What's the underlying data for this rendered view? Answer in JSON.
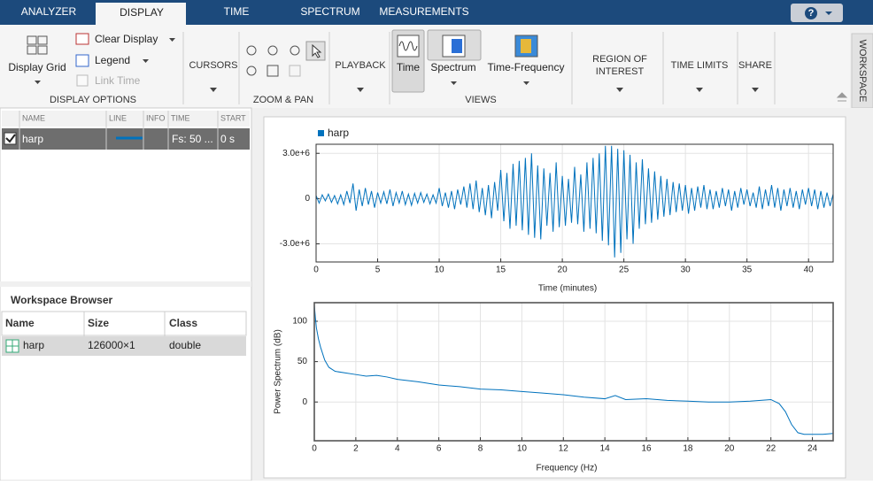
{
  "ui": {
    "tabs": [
      "ANALYZER",
      "DISPLAY",
      "TIME",
      "SPECTRUM",
      "MEASUREMENTS"
    ],
    "help": "?",
    "toolstrip": {
      "display_grid": "Display Grid",
      "clear_display": "Clear Display",
      "legend": "Legend",
      "link_time": "Link Time",
      "display_options": "DISPLAY OPTIONS",
      "cursors": "CURSORS",
      "zoom_pan": "ZOOM & PAN",
      "playback": "PLAYBACK",
      "time": "Time",
      "spectrum": "Spectrum",
      "time_frequency": "Time-Frequency",
      "views": "VIEWS",
      "region_of_interest": [
        "REGION OF",
        "INTEREST"
      ],
      "time_limits": "TIME LIMITS",
      "share": "SHARE"
    },
    "workspace_tab": "WORKSPACE",
    "signal_table": {
      "columns": [
        "NAME",
        "LINE",
        "INFO",
        "TIME",
        "START"
      ],
      "rows": [
        {
          "name": "harp",
          "time": "Fs: 50 ...",
          "start": "0 s"
        }
      ]
    },
    "workspace_browser": {
      "title": "Workspace Browser",
      "columns": [
        "Name",
        "Size",
        "Class"
      ],
      "rows": [
        [
          "harp",
          "126000×1",
          "double"
        ]
      ]
    }
  },
  "chart_data": [
    {
      "type": "line",
      "x_label": "Time (minutes)",
      "legend": "top-left",
      "grid": true,
      "x": [
        0,
        0.25,
        0.5,
        0.75,
        1,
        1.25,
        1.5,
        1.75,
        2,
        2.25,
        2.5,
        2.75,
        3,
        3.25,
        3.5,
        3.75,
        4,
        4.25,
        4.5,
        4.75,
        5,
        5.25,
        5.5,
        5.75,
        6,
        6.25,
        6.5,
        6.75,
        7,
        7.25,
        7.5,
        7.75,
        8,
        8.25,
        8.5,
        8.75,
        9,
        9.25,
        9.5,
        9.75,
        10,
        10.25,
        10.5,
        10.75,
        11,
        11.25,
        11.5,
        11.75,
        12,
        12.25,
        12.5,
        12.75,
        13,
        13.25,
        13.5,
        13.75,
        14,
        14.25,
        14.5,
        14.75,
        15,
        15.25,
        15.5,
        15.75,
        16,
        16.25,
        16.5,
        16.75,
        17,
        17.25,
        17.5,
        17.75,
        18,
        18.25,
        18.5,
        18.75,
        19,
        19.25,
        19.5,
        19.75,
        20,
        20.25,
        20.5,
        20.75,
        21,
        21.25,
        21.5,
        21.75,
        22,
        22.25,
        22.5,
        22.75,
        23,
        23.25,
        23.5,
        23.75,
        24,
        24.25,
        24.5,
        24.75,
        25,
        25.25,
        25.5,
        25.75,
        26,
        26.25,
        26.5,
        26.75,
        27,
        27.25,
        27.5,
        27.75,
        28,
        28.25,
        28.5,
        28.75,
        29,
        29.25,
        29.5,
        29.75,
        30,
        30.25,
        30.5,
        30.75,
        31,
        31.25,
        31.5,
        31.75,
        32,
        32.25,
        32.5,
        32.75,
        33,
        33.25,
        33.5,
        33.75,
        34,
        34.25,
        34.5,
        34.75,
        35,
        35.25,
        35.5,
        35.75,
        36,
        36.25,
        36.5,
        36.75,
        37,
        37.25,
        37.5,
        37.75,
        38,
        38.25,
        38.5,
        38.75,
        39,
        39.25,
        39.5,
        39.75,
        40,
        40.25,
        40.5,
        40.75,
        41,
        41.25,
        41.5,
        41.75,
        42
      ],
      "series": [
        {
          "name": "harp",
          "color": "#0072bd",
          "values": [
            200000,
            -300000,
            250000,
            -150000,
            300000,
            -250000,
            200000,
            -350000,
            250000,
            -400000,
            500000,
            -300000,
            1000000,
            -800000,
            600000,
            -500000,
            700000,
            -400000,
            500000,
            -600000,
            400000,
            -300000,
            450000,
            -350000,
            600000,
            -500000,
            400000,
            -300000,
            500000,
            -400000,
            300000,
            -450000,
            350000,
            -300000,
            400000,
            -250000,
            300000,
            -350000,
            250000,
            -300000,
            700000,
            -500000,
            400000,
            -600000,
            500000,
            -700000,
            600000,
            -400000,
            800000,
            -600000,
            1000000,
            -700000,
            1200000,
            -900000,
            700000,
            -1100000,
            900000,
            -1300000,
            1100000,
            -800000,
            1900000,
            -1500000,
            1700000,
            -2000000,
            2300000,
            -1800000,
            2500000,
            -2100000,
            2700000,
            -2400000,
            3000000,
            -2600000,
            2200000,
            -2700000,
            2000000,
            -1800000,
            1700000,
            -2200000,
            2400000,
            -1900000,
            1500000,
            -1800000,
            1300000,
            -1600000,
            2100000,
            -1700000,
            1600000,
            -2200000,
            2400000,
            -2000000,
            2700000,
            -2300000,
            3000000,
            -2800000,
            3500000,
            -3100000,
            3500000,
            -3900000,
            3300000,
            -3600000,
            3200000,
            -2700000,
            2900000,
            -3000000,
            2400000,
            -2000000,
            2600000,
            -1700000,
            2000000,
            -1600000,
            1800000,
            -1400000,
            1500000,
            -1200000,
            1300000,
            -1100000,
            1100000,
            -900000,
            1000000,
            -800000,
            900000,
            -1000000,
            700000,
            -800000,
            800000,
            -600000,
            900000,
            -700000,
            600000,
            -700000,
            500000,
            -600000,
            700000,
            -500000,
            600000,
            -800000,
            500000,
            -600000,
            700000,
            -400000,
            600000,
            -500000,
            400000,
            -600000,
            800000,
            -700000,
            600000,
            -500000,
            900000,
            -600000,
            700000,
            -800000,
            600000,
            -500000,
            700000,
            -600000,
            500000,
            -700000,
            600000,
            -400000,
            700000,
            -500000,
            600000,
            -700000,
            500000,
            -600000,
            400000,
            -500000,
            300000
          ]
        }
      ],
      "xlim": [
        0,
        42
      ],
      "ylim": [
        -4200000,
        3600000
      ],
      "xticks": [
        0,
        5,
        10,
        15,
        20,
        25,
        30,
        35,
        40
      ],
      "yticks": [
        {
          "value": -3000000,
          "label": "-3.0e+6"
        },
        0,
        {
          "value": 3000000,
          "label": "3.0e+6"
        }
      ]
    },
    {
      "type": "line",
      "x_label": "Frequency (Hz)",
      "y_label": "Power Spectrum (dB)",
      "grid": true,
      "x": [
        0,
        0.05,
        0.1,
        0.2,
        0.3,
        0.5,
        0.7,
        1,
        1.5,
        2,
        2.5,
        3,
        3.5,
        4,
        5,
        6,
        7,
        8,
        9,
        10,
        11,
        12,
        13,
        14,
        14.5,
        15,
        16,
        17,
        18,
        19,
        20,
        21,
        22,
        22.4,
        22.7,
        23,
        23.3,
        23.6,
        24,
        24.5,
        25
      ],
      "series": [
        {
          "color": "#0072bd",
          "values": [
            120,
            105,
            92,
            78,
            68,
            52,
            43,
            38,
            36,
            34,
            32,
            33,
            31,
            28,
            25,
            21,
            19,
            16,
            15,
            13,
            11,
            9,
            6,
            4,
            8,
            3,
            4,
            2,
            1,
            0,
            0,
            1,
            3,
            -2,
            -12,
            -28,
            -38,
            -40,
            -40,
            -40,
            -39
          ]
        }
      ],
      "xlim": [
        0,
        25
      ],
      "ylim": [
        -48,
        123
      ],
      "xticks": [
        0,
        2,
        4,
        6,
        8,
        10,
        12,
        14,
        16,
        18,
        20,
        22,
        24
      ],
      "yticks": [
        0,
        50,
        100
      ]
    }
  ]
}
